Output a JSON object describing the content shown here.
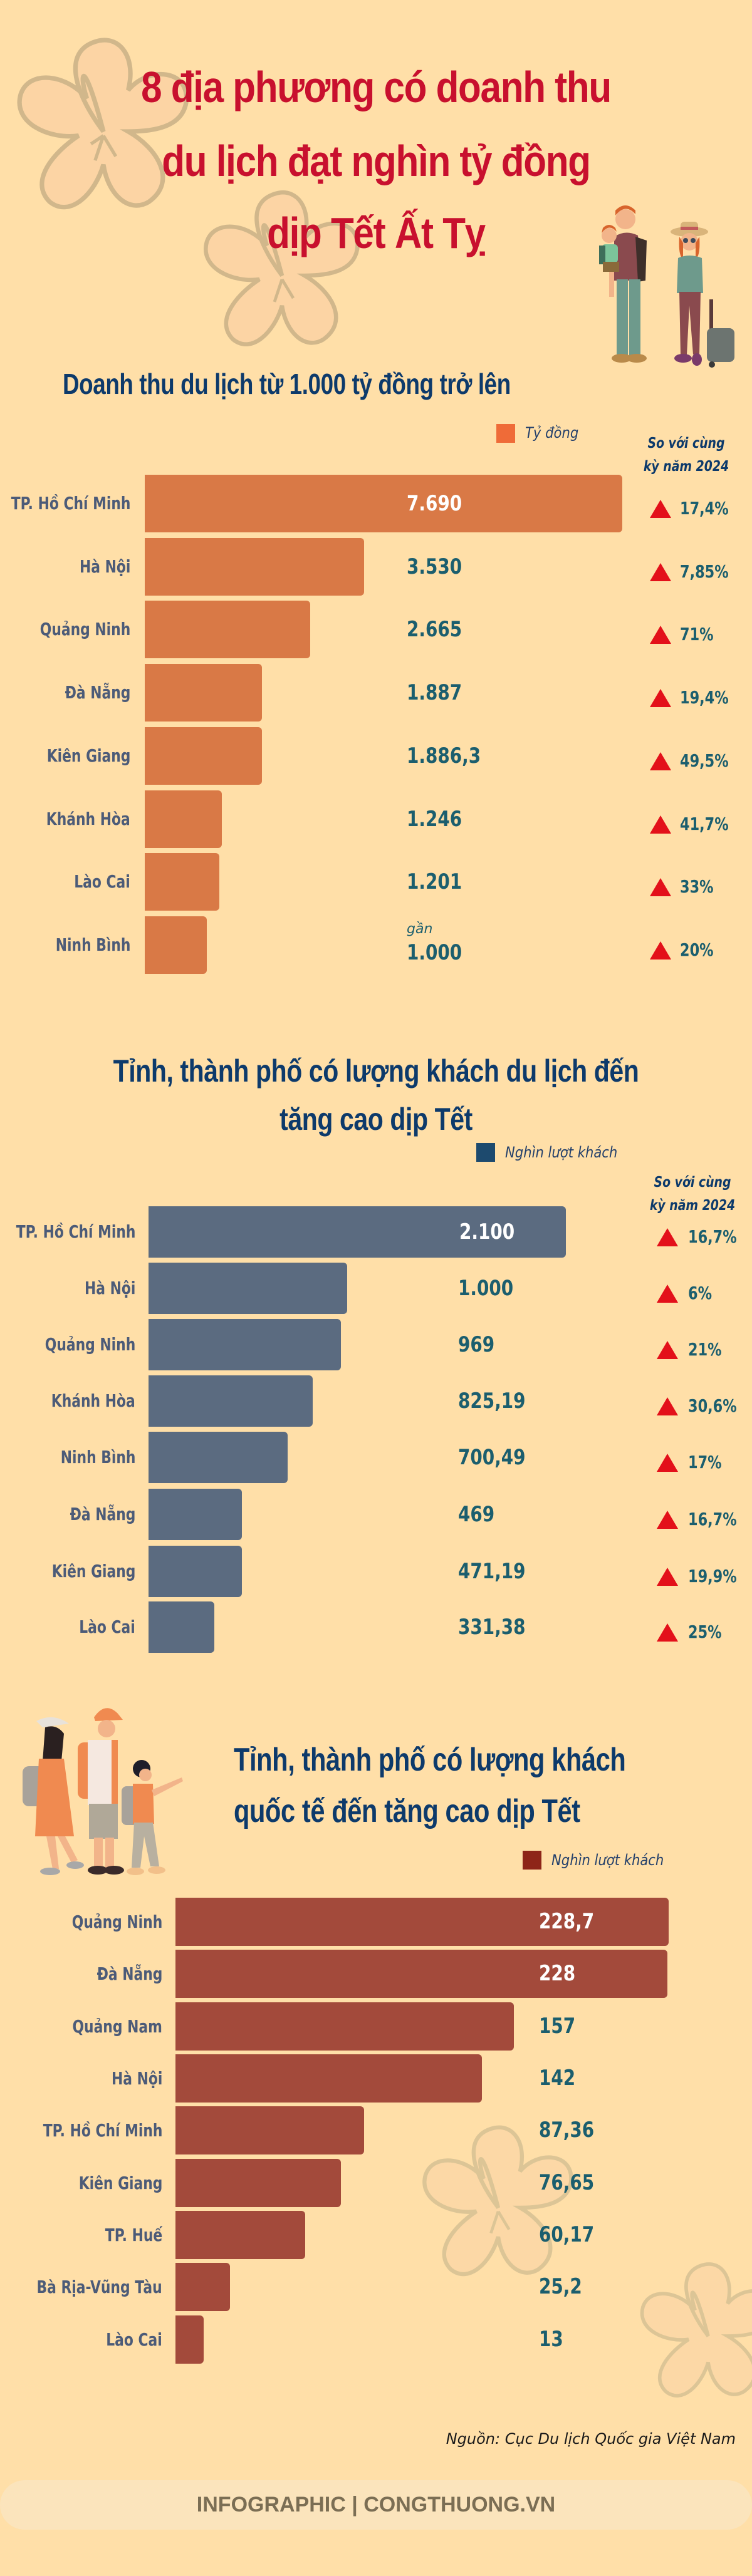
{
  "header": {
    "title_lines": [
      "8 địa phương có doanh thu",
      "du lịch đạt nghìn tỷ đồng",
      "dịp Tết Ất Tỵ"
    ]
  },
  "colors": {
    "background": "#FFDFA8",
    "title_red": "#C8102E",
    "heading_navy": "#0D3A6B",
    "bar_revenue": "#D97946",
    "bar_visitors": "#5B6B80",
    "bar_international": "#A34A3B",
    "value_teal": "#1B5E6E",
    "up_arrow": "#E3101A"
  },
  "compare_header": [
    "So với cùng",
    "kỳ năm 2024"
  ],
  "chart_data": [
    {
      "type": "bar",
      "orientation": "horizontal",
      "title": "Doanh thu du lịch từ 1.000 tỷ đồng trở lên",
      "legend": "Tỷ đồng",
      "unit": "tỷ đồng",
      "categories": [
        "TP. Hồ Chí Minh",
        "Hà Nội",
        "Quảng Ninh",
        "Đà Nẵng",
        "Kiên Giang",
        "Khánh Hòa",
        "Lào Cai",
        "Ninh Bình"
      ],
      "values": [
        7690,
        3530,
        2665,
        1887,
        1886.3,
        1246,
        1201,
        1000
      ],
      "value_labels": [
        "7.690",
        "3.530",
        "2.665",
        "1.887",
        "1.886,3",
        "1.246",
        "1.201",
        "1.000"
      ],
      "value_prefix": [
        "",
        "",
        "",
        "",
        "",
        "",
        "",
        "gần"
      ],
      "yoy_change_label": "So với cùng kỳ năm 2024",
      "yoy_change": [
        "17,4%",
        "7,85%",
        "71%",
        "19,4%",
        "49,5%",
        "41,7%",
        "33%",
        "20%"
      ],
      "yoy_direction": [
        "up",
        "up",
        "up",
        "up",
        "up",
        "up",
        "up",
        "up"
      ]
    },
    {
      "type": "bar",
      "orientation": "horizontal",
      "title": "Tỉnh, thành phố có lượng khách du lịch đến tăng cao dịp Tết",
      "legend": "Nghìn lượt khách",
      "unit": "nghìn lượt khách",
      "categories": [
        "TP. Hồ Chí Minh",
        "Hà Nội",
        "Quảng Ninh",
        "Khánh Hòa",
        "Ninh Bình",
        "Đà Nẵng",
        "Kiên Giang",
        "Lào Cai"
      ],
      "values": [
        2100,
        1000,
        969,
        825.19,
        700.49,
        469,
        471.19,
        331.38
      ],
      "value_labels": [
        "2.100",
        "1.000",
        "969",
        "825,19",
        "700,49",
        "469",
        "471,19",
        "331,38"
      ],
      "yoy_change_label": "So với cùng kỳ năm 2024",
      "yoy_change": [
        "16,7%",
        "6%",
        "21%",
        "30,6%",
        "17%",
        "16,7%",
        "19,9%",
        "25%"
      ],
      "yoy_direction": [
        "up",
        "up",
        "up",
        "up",
        "up",
        "up",
        "up",
        "up"
      ]
    },
    {
      "type": "bar",
      "orientation": "horizontal",
      "title": "Tỉnh, thành phố có lượng khách quốc tế đến tăng cao dịp Tết",
      "legend": "Nghìn lượt khách",
      "unit": "nghìn lượt khách",
      "categories": [
        "Quảng Ninh",
        "Đà Nẵng",
        "Quảng Nam",
        "Hà Nội",
        "TP. Hồ Chí Minh",
        "Kiên Giang",
        "TP. Huế",
        "Bà Rịa-Vũng Tàu",
        "Lào Cai"
      ],
      "values": [
        228.7,
        228,
        157,
        142,
        87.36,
        76.65,
        60.17,
        25.2,
        13
      ],
      "value_labels": [
        "228,7",
        "228",
        "157",
        "142",
        "87,36",
        "76,65",
        "60,17",
        "25,2",
        "13"
      ]
    }
  ],
  "chart1": {
    "title": "Doanh thu du lịch từ 1.000 tỷ đồng trở lên",
    "legend": "Tỷ đồng"
  },
  "chart2": {
    "title_lines": [
      "Tỉnh, thành phố có lượng khách du lịch đến",
      "tăng cao dịp Tết"
    ],
    "legend": "Nghìn lượt khách"
  },
  "chart3": {
    "title_lines": [
      "Tỉnh, thành phố có lượng khách",
      "quốc tế đến tăng cao dịp Tết"
    ],
    "legend": "Nghìn lượt khách"
  },
  "footer": {
    "source": "Nguồn: Cục Du lịch Quốc gia Việt Nam",
    "brand": "INFOGRAPHIC | CONGTHUONG.VN"
  },
  "icons": {
    "family_illustration": "family-travelers-illustration",
    "hikers_illustration": "family-hikers-illustration",
    "flower_decoration": "apricot-blossom-outline",
    "change_indicator": "red-up-triangle"
  }
}
